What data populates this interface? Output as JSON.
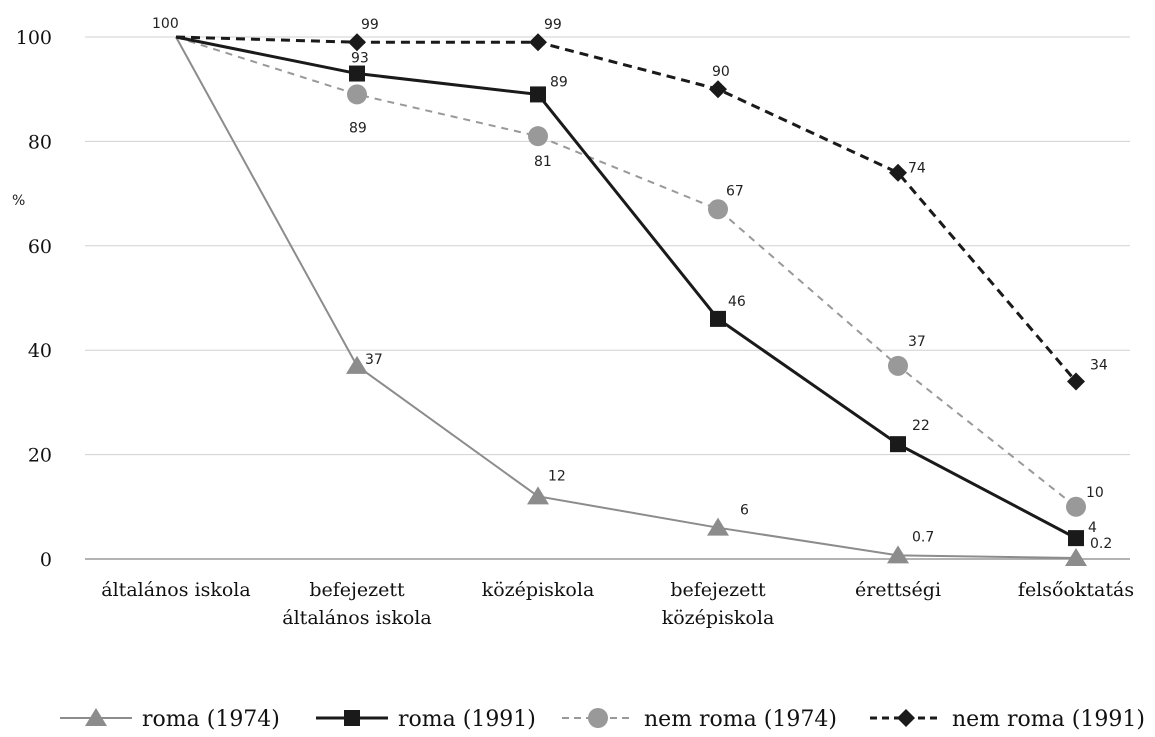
{
  "chart_data": {
    "type": "line",
    "ylabel": "%",
    "ylim": [
      0,
      100
    ],
    "yticks": [
      0,
      20,
      40,
      60,
      80,
      100
    ],
    "grid": "horizontal",
    "legend_position": "bottom",
    "categories": [
      [
        "általános iskola"
      ],
      [
        "befejezett",
        "általános iskola"
      ],
      [
        "középiskola"
      ],
      [
        "befejezett",
        "középiskola"
      ],
      [
        "érettségi"
      ],
      [
        "felsőoktatás"
      ]
    ],
    "series": [
      {
        "name": "roma (1974)",
        "values": [
          100,
          37,
          12,
          6,
          0.7,
          0.2
        ],
        "labels": [
          "",
          "37",
          "12",
          "6",
          "0.7",
          "0.2"
        ],
        "color": "#8c8c8c",
        "line": "solid",
        "width": 2,
        "marker": "triangle"
      },
      {
        "name": "roma (1991)",
        "values": [
          100,
          93,
          89,
          46,
          22,
          4
        ],
        "labels": [
          "",
          "93",
          "89",
          "46",
          "22",
          "4"
        ],
        "color": "#1a1a1a",
        "line": "solid",
        "width": 3,
        "marker": "square"
      },
      {
        "name": "nem roma (1974)",
        "values": [
          100,
          89,
          81,
          67,
          37,
          10
        ],
        "labels": [
          "",
          "89",
          "81",
          "67",
          "37",
          "10"
        ],
        "color": "#999999",
        "line": "dashed",
        "width": 2,
        "marker": "circle"
      },
      {
        "name": "nem roma (1991)",
        "values": [
          100,
          99,
          99,
          90,
          74,
          34
        ],
        "labels": [
          "",
          "99",
          "99",
          "90",
          "74",
          "34"
        ],
        "color": "#1a1a1a",
        "line": "dashed",
        "width": 3,
        "marker": "diamond"
      }
    ],
    "start_label": "100"
  }
}
